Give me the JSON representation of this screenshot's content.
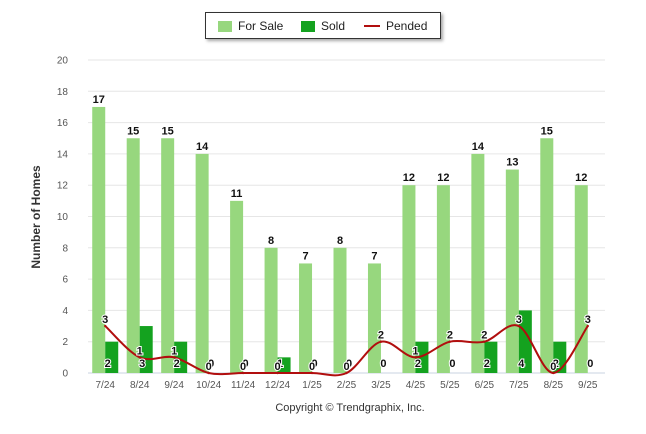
{
  "chart_data": {
    "type": "bar",
    "title": "",
    "xlabel": "",
    "ylabel": "Number of Homes",
    "ylim": [
      0,
      20
    ],
    "yticks": [
      "0",
      "2",
      "4",
      "6",
      "8",
      "10",
      "12",
      "14",
      "16",
      "18",
      "20"
    ],
    "categories": [
      "7/24",
      "8/24",
      "9/24",
      "10/24",
      "11/24",
      "12/24",
      "1/25",
      "2/25",
      "3/25",
      "4/25",
      "5/25",
      "6/25",
      "7/25",
      "8/25",
      "9/25"
    ],
    "series": [
      {
        "name": "For Sale",
        "kind": "bar",
        "color": "#97d77e",
        "values": [
          17,
          15,
          15,
          14,
          11,
          8,
          7,
          8,
          7,
          12,
          12,
          14,
          13,
          15,
          12
        ]
      },
      {
        "name": "Sold",
        "kind": "bar",
        "color": "#14a21f",
        "values": [
          2,
          3,
          2,
          0,
          0,
          1,
          0,
          0,
          0,
          2,
          0,
          2,
          4,
          2,
          0
        ]
      },
      {
        "name": "Pended",
        "kind": "line",
        "color": "#b10e0e",
        "values": [
          3,
          1,
          1,
          0,
          0,
          0,
          0,
          0,
          2,
          1,
          2,
          2,
          3,
          0,
          3
        ]
      }
    ],
    "legend": {
      "items": [
        "For Sale",
        "Sold",
        "Pended"
      ],
      "position": "top-center"
    }
  },
  "footer": {
    "copyright": "Copyright © Trendgraphix, Inc."
  }
}
